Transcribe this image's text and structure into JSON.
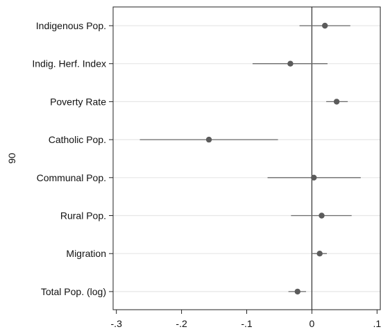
{
  "chart_data": {
    "type": "scatter",
    "subtype": "coefficient-plot",
    "title": "",
    "xlabel": "",
    "ylabel": "90",
    "categories": [
      "Indigenous Pop.",
      "Indig. Herf. Index",
      "Poverty Rate",
      "Catholic Pop.",
      "Communal Pop.",
      "Rural Pop.",
      "Migration",
      "Total Pop. (log)"
    ],
    "series": [
      {
        "estimates": [
          0.02,
          -0.033,
          0.038,
          -0.158,
          0.003,
          0.015,
          0.012,
          -0.022
        ],
        "ci_lower": [
          -0.019,
          -0.091,
          0.022,
          -0.264,
          -0.068,
          -0.032,
          0.001,
          -0.036
        ],
        "ci_upper": [
          0.059,
          0.024,
          0.055,
          -0.052,
          0.075,
          0.061,
          0.023,
          -0.009
        ]
      }
    ],
    "xlim": [
      -0.305,
      0.105
    ],
    "x_ticks": [
      -0.3,
      -0.2,
      -0.1,
      0,
      0.1
    ],
    "x_tick_labels": [
      "-.3",
      "-.2",
      "-.1",
      "0",
      ".1"
    ],
    "reference_line_x": 0,
    "grid": true,
    "legend": "none",
    "colors": {
      "marker": "#5b5b5b",
      "ci": "#6a6a6a",
      "grid": "#e6e6e6",
      "axis": "#222222",
      "reference": "#2f2f2f"
    }
  }
}
